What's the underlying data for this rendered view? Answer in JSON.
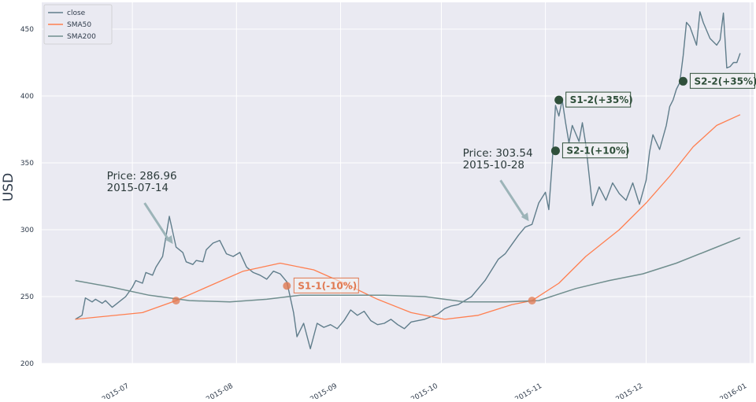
{
  "chart_data": {
    "type": "line",
    "title": "",
    "xlabel": "",
    "ylabel": "USD",
    "ylim": [
      200,
      470
    ],
    "yticks": [
      200,
      250,
      300,
      350,
      400,
      450
    ],
    "xlim": [
      "2015-06-04",
      "2016-01-02"
    ],
    "xticks": [
      {
        "date": "2015-07-01",
        "label": "2015-07"
      },
      {
        "date": "2015-08-01",
        "label": "2015-08"
      },
      {
        "date": "2015-09-01",
        "label": "2015-09"
      },
      {
        "date": "2015-10-01",
        "label": "2015-10"
      },
      {
        "date": "2015-11-01",
        "label": "2015-11"
      },
      {
        "date": "2015-12-01",
        "label": "2015-12"
      },
      {
        "date": "2016-01-01",
        "label": "2016-01"
      }
    ],
    "grid": true,
    "legend_position": "top-left",
    "colors": {
      "background": "#eaeaf2",
      "grid": "#ffffff",
      "close": "#607d8b",
      "sma50": "#ff7f50",
      "sma200": "#708e8e",
      "signal_sell": "#e07850",
      "signal_buy": "#2f4f3a",
      "arrow": "#9cb4b8"
    },
    "series": [
      {
        "name": "close",
        "color": "#607d8b",
        "x": [
          "2015-06-14",
          "2015-06-16",
          "2015-06-17",
          "2015-06-19",
          "2015-06-20",
          "2015-06-22",
          "2015-06-23",
          "2015-06-25",
          "2015-06-26",
          "2015-06-28",
          "2015-06-29",
          "2015-07-01",
          "2015-07-02",
          "2015-07-04",
          "2015-07-05",
          "2015-07-07",
          "2015-07-08",
          "2015-07-10",
          "2015-07-11",
          "2015-07-12",
          "2015-07-14",
          "2015-07-16",
          "2015-07-17",
          "2015-07-19",
          "2015-07-20",
          "2015-07-22",
          "2015-07-23",
          "2015-07-25",
          "2015-07-27",
          "2015-07-29",
          "2015-07-31",
          "2015-08-02",
          "2015-08-04",
          "2015-08-06",
          "2015-08-08",
          "2015-08-10",
          "2015-08-12",
          "2015-08-14",
          "2015-08-16",
          "2015-08-18",
          "2015-08-19",
          "2015-08-21",
          "2015-08-23",
          "2015-08-25",
          "2015-08-27",
          "2015-08-29",
          "2015-08-31",
          "2015-09-02",
          "2015-09-04",
          "2015-09-06",
          "2015-09-08",
          "2015-09-10",
          "2015-09-12",
          "2015-09-14",
          "2015-09-16",
          "2015-09-18",
          "2015-09-20",
          "2015-09-22",
          "2015-09-24",
          "2015-09-26",
          "2015-09-28",
          "2015-09-30",
          "2015-10-02",
          "2015-10-04",
          "2015-10-06",
          "2015-10-08",
          "2015-10-10",
          "2015-10-12",
          "2015-10-14",
          "2015-10-16",
          "2015-10-18",
          "2015-10-20",
          "2015-10-22",
          "2015-10-24",
          "2015-10-26",
          "2015-10-28",
          "2015-10-30",
          "2015-11-01",
          "2015-11-02",
          "2015-11-03",
          "2015-11-04",
          "2015-11-05",
          "2015-11-06",
          "2015-11-07",
          "2015-11-08",
          "2015-11-09",
          "2015-11-10",
          "2015-11-11",
          "2015-11-12",
          "2015-11-13",
          "2015-11-15",
          "2015-11-17",
          "2015-11-19",
          "2015-11-21",
          "2015-11-23",
          "2015-11-25",
          "2015-11-27",
          "2015-11-29",
          "2015-12-01",
          "2015-12-02",
          "2015-12-03",
          "2015-12-05",
          "2015-12-07",
          "2015-12-08",
          "2015-12-09",
          "2015-12-10",
          "2015-12-11",
          "2015-12-12",
          "2015-12-13",
          "2015-12-14",
          "2015-12-16",
          "2015-12-17",
          "2015-12-18",
          "2015-12-20",
          "2015-12-22",
          "2015-12-23",
          "2015-12-24",
          "2015-12-25",
          "2015-12-26",
          "2015-12-27",
          "2015-12-28",
          "2015-12-29"
        ],
        "y": [
          233,
          236,
          249,
          246,
          248,
          245,
          247,
          242,
          244,
          248,
          250,
          257,
          262,
          260,
          268,
          266,
          272,
          280,
          295,
          310,
          287,
          283,
          276,
          274,
          277,
          276,
          285,
          290,
          292,
          282,
          280,
          283,
          272,
          268,
          266,
          263,
          269,
          267,
          261,
          238,
          220,
          230,
          211,
          230,
          227,
          229,
          226,
          232,
          240,
          236,
          239,
          232,
          229,
          230,
          233,
          229,
          226,
          231,
          232,
          233,
          235,
          237,
          241,
          243,
          244,
          247,
          250,
          256,
          262,
          270,
          278,
          282,
          289,
          296,
          302,
          304,
          320,
          328,
          315,
          350,
          393,
          385,
          397,
          380,
          365,
          378,
          372,
          366,
          380,
          364,
          318,
          332,
          322,
          335,
          327,
          322,
          335,
          319,
          337,
          358,
          371,
          360,
          378,
          392,
          397,
          405,
          410,
          430,
          455,
          452,
          438,
          463,
          455,
          443,
          438,
          442,
          462,
          421,
          422,
          425,
          425,
          432
        ]
      },
      {
        "name": "SMA50",
        "color": "#ff7f50",
        "x": [
          "2015-06-14",
          "2015-06-24",
          "2015-07-04",
          "2015-07-14",
          "2015-07-24",
          "2015-08-03",
          "2015-08-14",
          "2015-08-24",
          "2015-09-02",
          "2015-09-12",
          "2015-09-22",
          "2015-10-02",
          "2015-10-12",
          "2015-10-22",
          "2015-10-28",
          "2015-11-05",
          "2015-11-13",
          "2015-11-23",
          "2015-12-01",
          "2015-12-08",
          "2015-12-15",
          "2015-12-22",
          "2015-12-29"
        ],
        "y": [
          233,
          235.5,
          238,
          247,
          258,
          269,
          275,
          270,
          260,
          248,
          238,
          233,
          236,
          244,
          247,
          260,
          280,
          300,
          320,
          340,
          362,
          378,
          386
        ]
      },
      {
        "name": "SMA200",
        "color": "#708e8e",
        "x": [
          "2015-06-14",
          "2015-06-25",
          "2015-07-06",
          "2015-07-18",
          "2015-07-30",
          "2015-08-10",
          "2015-08-20",
          "2015-09-02",
          "2015-09-14",
          "2015-09-26",
          "2015-10-08",
          "2015-10-20",
          "2015-10-30",
          "2015-11-10",
          "2015-11-20",
          "2015-11-30",
          "2015-12-10",
          "2015-12-20",
          "2015-12-29"
        ],
        "y": [
          262,
          257,
          251,
          247,
          246,
          248,
          251,
          251,
          251,
          250,
          246,
          246,
          247,
          256,
          262,
          267,
          275,
          285,
          294
        ]
      }
    ],
    "signals": [
      {
        "label": "S1-1(-10%)",
        "x": "2015-08-16",
        "y": 258,
        "kind": "sell"
      },
      {
        "label": "S1-2(+35%)",
        "x": "2015-11-05",
        "y": 397,
        "kind": "buy"
      },
      {
        "label": "S2-1(+10%)",
        "x": "2015-11-04",
        "y": 359,
        "kind": "buy"
      },
      {
        "label": "S2-2(+35%)",
        "x": "2015-12-12",
        "y": 411,
        "kind": "buy"
      }
    ],
    "cross_points": [
      {
        "x": "2015-07-14",
        "y": 247
      },
      {
        "x": "2015-10-28",
        "y": 247
      }
    ],
    "annotations": [
      {
        "price_line": "Price: 286.96",
        "date_line": "2015-07-14",
        "x": "2015-07-14",
        "y": 287
      },
      {
        "price_line": "Price: 303.54",
        "date_line": "2015-10-28",
        "x": "2015-10-28",
        "y": 304
      }
    ],
    "legend": [
      "close",
      "SMA50",
      "SMA200"
    ]
  }
}
